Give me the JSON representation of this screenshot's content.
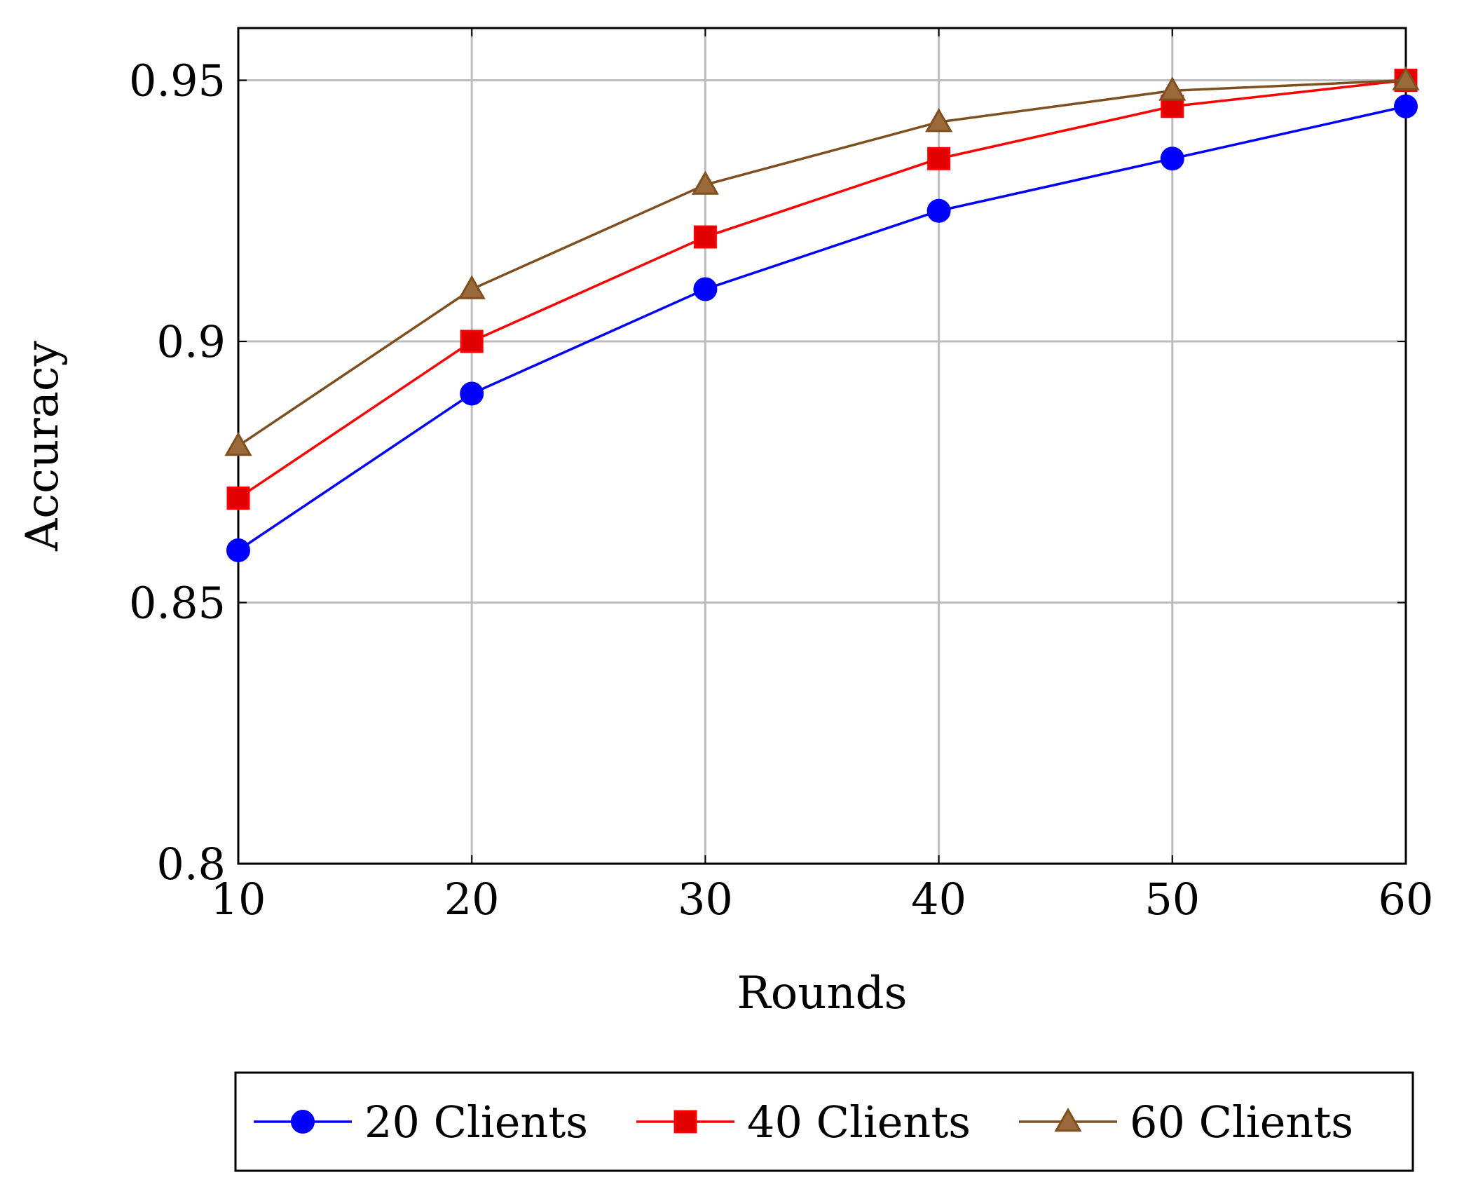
{
  "chart_data": {
    "type": "line",
    "xlabel": "Rounds",
    "ylabel": "Accuracy",
    "xlim": [
      10,
      60
    ],
    "ylim": [
      0.8,
      0.96
    ],
    "xticks": [
      10,
      20,
      30,
      40,
      50,
      60
    ],
    "xtick_labels": [
      "10",
      "20",
      "30",
      "40",
      "50",
      "60"
    ],
    "yticks": [
      0.8,
      0.85,
      0.9,
      0.95
    ],
    "ytick_labels": [
      "0.8",
      "0.85",
      "0.9",
      "0.95"
    ],
    "grid": true,
    "legend_position": "bottom-center",
    "x": [
      10,
      20,
      30,
      40,
      50,
      60
    ],
    "series": [
      {
        "name": "20 Clients",
        "values": [
          0.86,
          0.89,
          0.91,
          0.925,
          0.935,
          0.945
        ],
        "color": "#0000ff",
        "marker": "circle"
      },
      {
        "name": "40 Clients",
        "values": [
          0.87,
          0.9,
          0.92,
          0.935,
          0.945,
          0.95
        ],
        "color": "#ff0000",
        "marker": "square"
      },
      {
        "name": "60 Clients",
        "values": [
          0.88,
          0.91,
          0.93,
          0.942,
          0.948,
          0.95
        ],
        "color": "#7f4f1f",
        "marker": "triangle"
      }
    ]
  }
}
